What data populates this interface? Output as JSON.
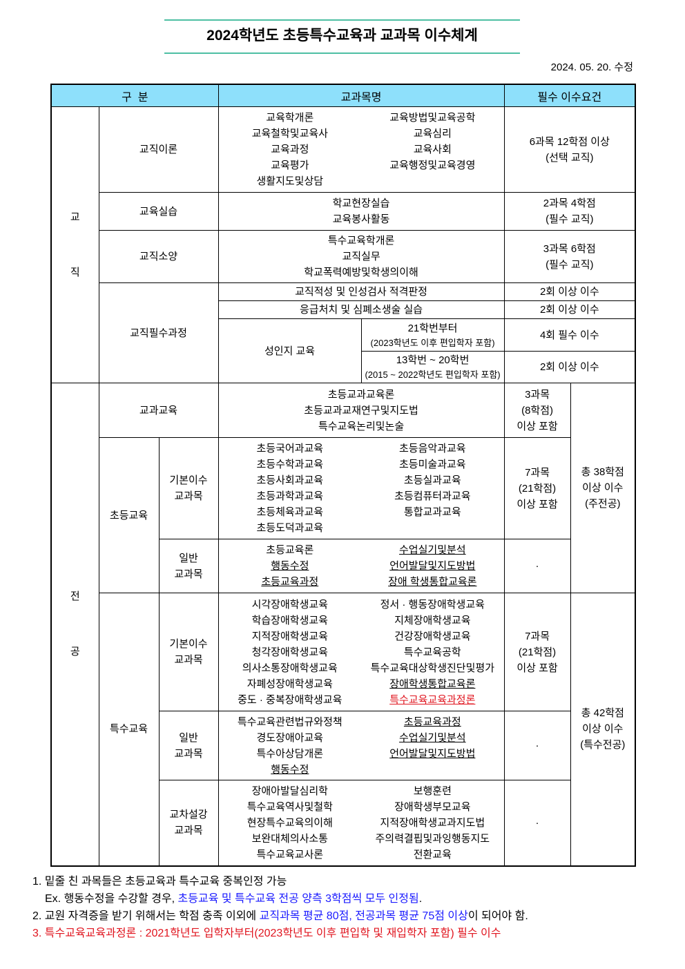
{
  "title": "2024학년도 초등특수교육과 교과목 이수체계",
  "revision_date": "2024. 05. 20. 수정",
  "header": {
    "category": "구  분",
    "subjects": "교과목명",
    "requirement": "필수 이수요건"
  },
  "teaching": {
    "label": "교\n\n직",
    "theory": {
      "label": "교직이론",
      "left": [
        "교육학개론",
        "교육철학및교육사",
        "교육과정",
        "교육평가",
        "생활지도및상담"
      ],
      "right": [
        "교육방법및교육공학",
        "교육심리",
        "교육사회",
        "교육행정및교육경영"
      ],
      "req": "6과목 12학점 이상\n(선택 교직)"
    },
    "practice": {
      "label": "교육실습",
      "items": [
        "학교현장실습",
        "교육봉사활동"
      ],
      "req": "2과목 4학점\n(필수 교직)"
    },
    "culture": {
      "label": "교직소양",
      "items": [
        "특수교육학개론",
        "교직실무",
        "학교폭력예방및학생의이해"
      ],
      "req": "3과목 6학점\n(필수 교직)"
    },
    "required": {
      "label": "교직필수과정",
      "aptitude": {
        "text": "교직적성 및 인성검사 적격판정",
        "req": "2회 이상 이수"
      },
      "cpr": {
        "text": "응급처치 및 심폐소생술 실습",
        "req": "2회 이상 이수"
      },
      "gender": {
        "text": "성인지 교육",
        "a": {
          "line1": "21학번부터",
          "line2": "(2023학년도 이후 편입학자 포함)",
          "req": "4회 필수 이수"
        },
        "b": {
          "line1": "13학번 ~ 20학번",
          "line2": "(2015 ~ 2022학년도 편입학자 포함)",
          "req": "2회 이상 이수"
        }
      }
    }
  },
  "major": {
    "label": "전\n\n공",
    "subject_ed": {
      "label": "교과교육",
      "items": [
        "초등교과교육론",
        "초등교과교재연구및지도법",
        "특수교육논리및논술"
      ],
      "req": "3과목\n(8학점)\n이상 포함"
    },
    "elem_total": "총 38학점\n이상 이수\n(주전공)",
    "elem": {
      "label": "초등교육",
      "basic": {
        "label": "기본이수\n교과목",
        "left": [
          "초등국어과교육",
          "초등수학과교육",
          "초등사회과교육",
          "초등과학과교육",
          "초등체육과교육",
          "초등도덕과교육"
        ],
        "right": [
          "초등음악과교육",
          "초등미술과교육",
          "초등실과교육",
          "초등컴퓨터과교육",
          "통합교과교육"
        ],
        "req": "7과목\n(21학점)\n이상 포함"
      },
      "general": {
        "label": "일반\n교과목",
        "left": [
          {
            "t": "초등교육론"
          },
          {
            "t": "행동수정",
            "u": true
          },
          {
            "t": "초등교육과정",
            "u": true
          }
        ],
        "right": [
          {
            "t": "수업실기및분석",
            "u": true
          },
          {
            "t": "언어발달및지도방법",
            "u": true
          },
          {
            "t": "장애 학생통합교육론",
            "u": true
          }
        ],
        "req": "·"
      }
    },
    "special_total": "총 42학점\n이상 이수\n(특수전공)",
    "special": {
      "label": "특수교육",
      "basic": {
        "label": "기본이수\n교과목",
        "left": [
          {
            "t": "시각장애학생교육"
          },
          {
            "t": "학습장애학생교육"
          },
          {
            "t": "지적장애학생교육"
          },
          {
            "t": "청각장애학생교육"
          },
          {
            "t": "의사소통장애학생교육"
          },
          {
            "t": "자폐성장애학생교육"
          },
          {
            "t": "중도 · 중복장애학생교육"
          }
        ],
        "right": [
          {
            "t": "정서 · 행동장애학생교육"
          },
          {
            "t": "지체장애학생교육"
          },
          {
            "t": "건강장애학생교육"
          },
          {
            "t": "특수교육공학"
          },
          {
            "t": "특수교육대상학생진단및평가"
          },
          {
            "t": "장애학생통합교육론",
            "u": true
          },
          {
            "t": "특수교육교육과정론",
            "u": true,
            "red": true
          }
        ],
        "req": "7과목\n(21학점)\n이상 포함"
      },
      "general": {
        "label": "일반\n교과목",
        "left": [
          {
            "t": "특수교육관련법규와정책"
          },
          {
            "t": "경도장애아교육"
          },
          {
            "t": "특수아상담개론"
          },
          {
            "t": "행동수정",
            "u": true
          }
        ],
        "right": [
          {
            "t": "초등교육과정",
            "u": true
          },
          {
            "t": "수업실기및분석",
            "u": true
          },
          {
            "t": "언어발달및지도방법",
            "u": true
          }
        ],
        "req": "·"
      },
      "cross": {
        "label": "교차설강\n교과목",
        "left": [
          "장애아발달심리학",
          "특수교육역사및철학",
          "현장특수교육의이해",
          "보완대체의사소통",
          "특수교육교사론"
        ],
        "right": [
          "보행훈련",
          "장애학생부모교육",
          "지적장애학생교과지도법",
          "주의력결핍및과잉행동지도",
          "전환교육"
        ],
        "req": "·"
      }
    }
  },
  "notes": {
    "n1": "1. 밑줄 친 과목들은 초등교육과 특수교육 중복인정 가능",
    "n1b_pre": "Ex. 행동수정을 수강할 경우, ",
    "n1b_blue": "초등교육 및 특수교육 전공 양측 3학점씩 모두 인정됨",
    "n1b_post": ".",
    "n2_pre": "2. 교원 자격증을 받기 위해서는 학점 충족 이외에 ",
    "n2_blue": "교직과목 평균 80점, 전공과목 평균 75점 이상",
    "n2_post": "이 되어야 함.",
    "n3": "3. 특수교육교육과정론 : 2021학년도 입학자부터(2023학년도 이후 편입학 및 재입학자 포함) 필수 이수"
  },
  "colors": {
    "header_bg": "#8ee0fb",
    "title_rule": "#4dbfa3",
    "blue": "#1a1aff",
    "red": "#e0141e"
  }
}
